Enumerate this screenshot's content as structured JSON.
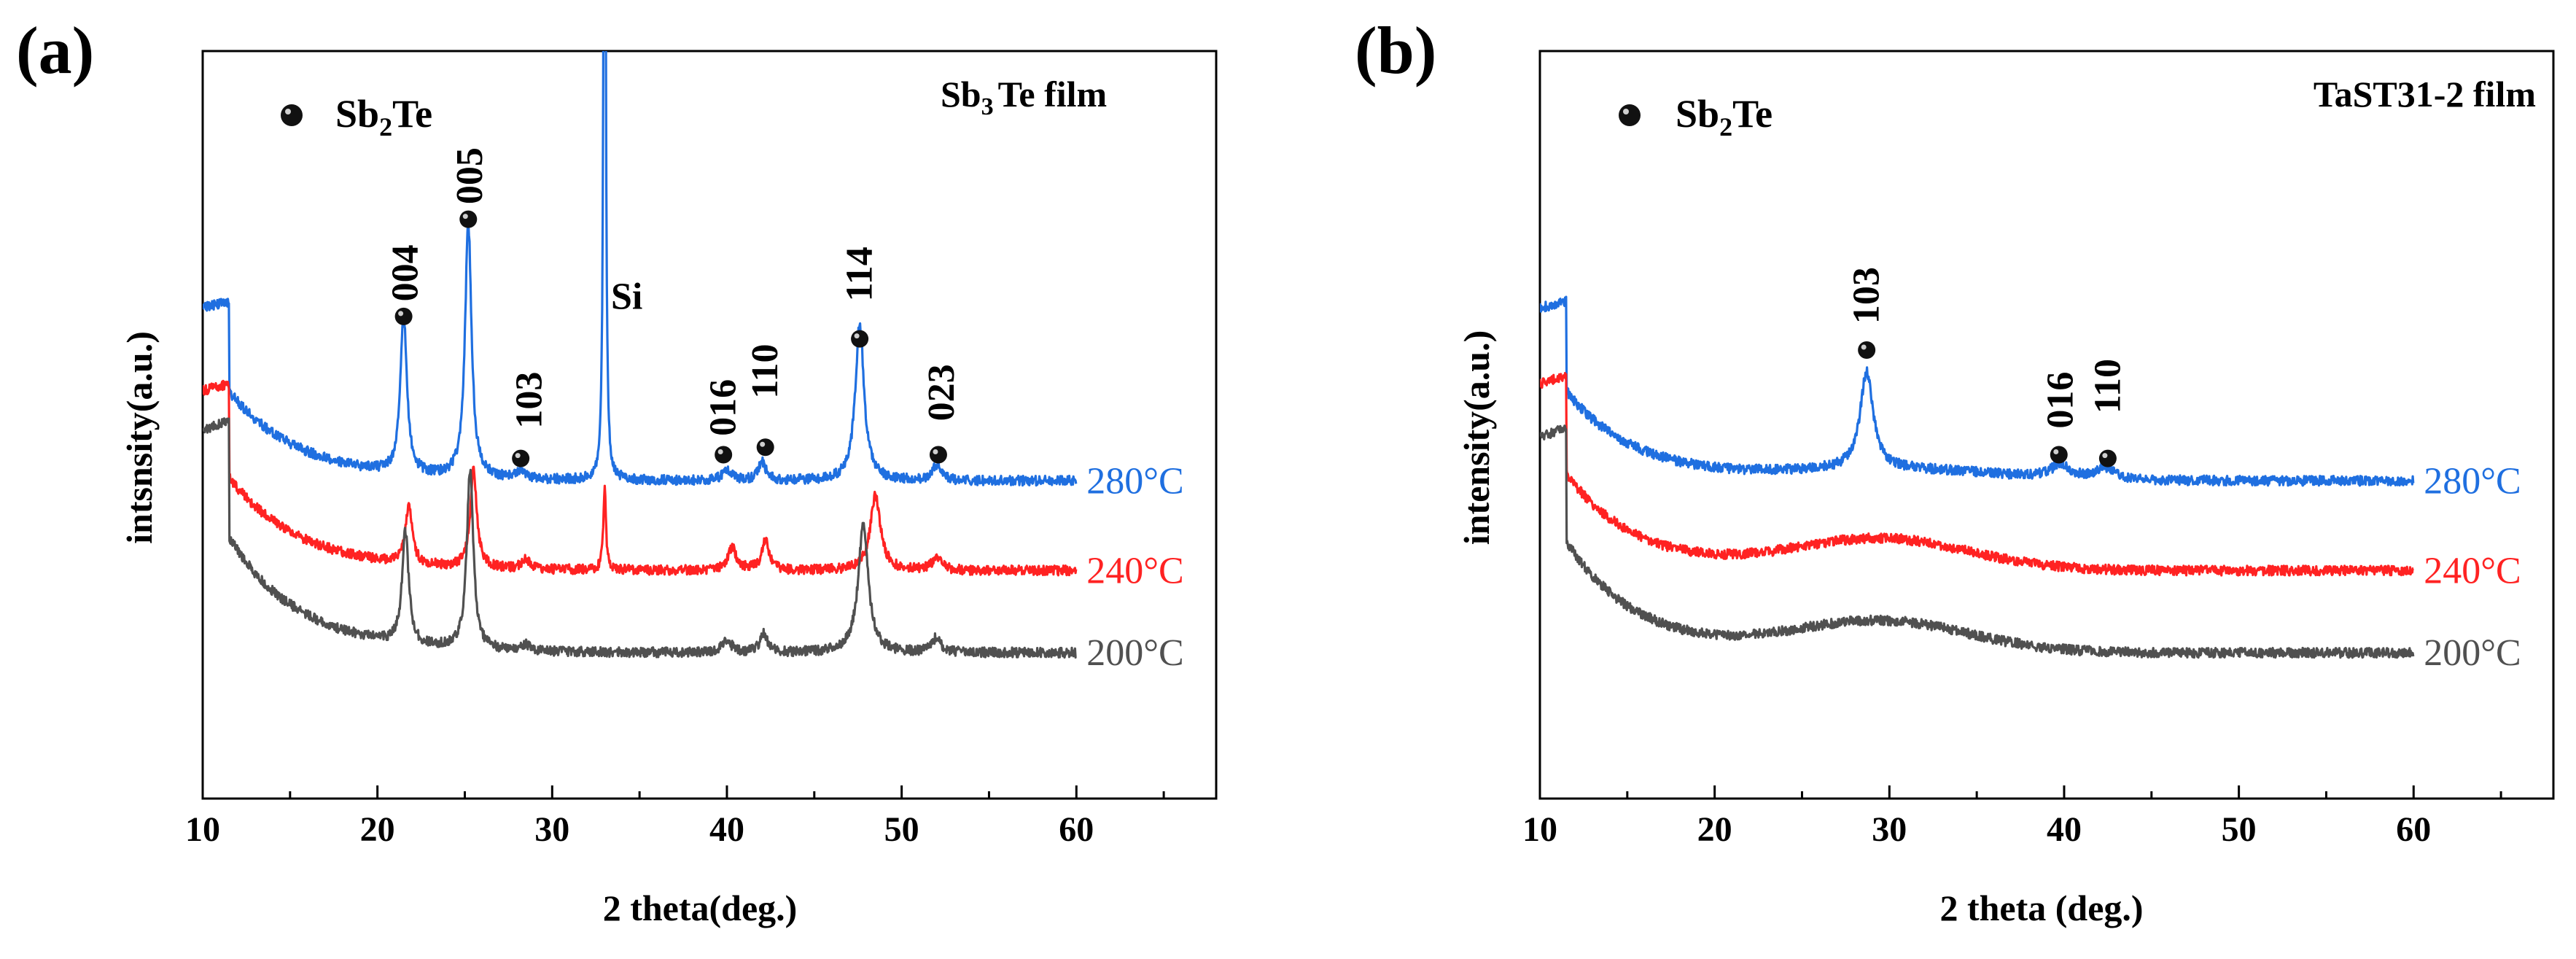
{
  "chart_data": [
    {
      "panel_label": "(a)",
      "type": "line",
      "title": "Sb3Te film",
      "title_parts": {
        "base": "Sb",
        "sub": "3",
        "rest": "Te film"
      },
      "legend": {
        "label_base": "Sb",
        "label_sub": "2",
        "label_rest": "Te",
        "placement": "top-left",
        "marker": "black sphere"
      },
      "xlabel": "2 theta(deg.)",
      "ylabel": "intsnsity(a.u.)",
      "xlim": [
        10,
        68
      ],
      "ylim": [
        0,
        100
      ],
      "x_ticks": [
        10,
        20,
        30,
        40,
        50,
        60
      ],
      "x_tick_labels": [
        "10",
        "20",
        "30",
        "40",
        "50",
        "60"
      ],
      "series": [
        {
          "name": "280°C",
          "color": "#1f6fe0",
          "baseline": 57.5,
          "hump": {
            "amplitude": 12,
            "center": 11.5,
            "width": 4
          },
          "peaks": [
            {
              "x": 21.5,
              "height": 21,
              "fwhm": 0.45
            },
            {
              "x": 25.2,
              "height": 34,
              "fwhm": 0.45
            },
            {
              "x": 28.2,
              "height": 1.2,
              "fwhm": 0.6
            },
            {
              "x": 33.0,
              "height": 150,
              "fwhm": 0.12
            },
            {
              "x": 40.0,
              "height": 1.5,
              "fwhm": 0.6
            },
            {
              "x": 42.0,
              "height": 2.6,
              "fwhm": 0.5
            },
            {
              "x": 47.6,
              "height": 21,
              "fwhm": 0.6
            },
            {
              "x": 52.0,
              "height": 2.0,
              "fwhm": 0.6
            }
          ]
        },
        {
          "name": "240°C",
          "color": "#ff2222",
          "baseline": 69.5,
          "hump": {
            "amplitude": 12.5,
            "center": 11.5,
            "width": 4
          },
          "peaks": [
            {
              "x": 21.8,
              "height": 8,
              "fwhm": 0.45
            },
            {
              "x": 25.5,
              "height": 13,
              "fwhm": 0.45
            },
            {
              "x": 28.5,
              "height": 1.3,
              "fwhm": 0.6
            },
            {
              "x": 33.0,
              "height": 11,
              "fwhm": 0.18
            },
            {
              "x": 40.3,
              "height": 3,
              "fwhm": 0.6
            },
            {
              "x": 42.2,
              "height": 4,
              "fwhm": 0.5
            },
            {
              "x": 48.5,
              "height": 10,
              "fwhm": 0.7
            },
            {
              "x": 52.0,
              "height": 1.8,
              "fwhm": 0.6
            }
          ]
        },
        {
          "name": "200°C",
          "color": "#505050",
          "baseline": 80.5,
          "hump": {
            "amplitude": 15.5,
            "center": 11.5,
            "width": 4
          },
          "peaks": [
            {
              "x": 21.6,
              "height": 15,
              "fwhm": 0.45
            },
            {
              "x": 25.3,
              "height": 24,
              "fwhm": 0.45
            },
            {
              "x": 28.5,
              "height": 0.8,
              "fwhm": 0.6
            },
            {
              "x": 40.0,
              "height": 1.7,
              "fwhm": 0.6
            },
            {
              "x": 42.1,
              "height": 2.6,
              "fwhm": 0.5
            },
            {
              "x": 47.8,
              "height": 17,
              "fwhm": 0.7
            },
            {
              "x": 52.0,
              "height": 2.0,
              "fwhm": 0.6
            }
          ]
        }
      ],
      "peak_markers": [
        {
          "x": 21.5,
          "y": 35.5
        },
        {
          "x": 25.2,
          "y": 22.5
        },
        {
          "x": 28.2,
          "y": 54.5
        },
        {
          "x": 39.8,
          "y": 54.0
        },
        {
          "x": 42.2,
          "y": 53.0
        },
        {
          "x": 47.6,
          "y": 38.5
        },
        {
          "x": 52.1,
          "y": 54.0
        }
      ],
      "peak_labels": [
        {
          "text": "004",
          "x": 21.6,
          "y": 33.5,
          "rotate": true
        },
        {
          "text": "005",
          "x": 25.3,
          "y": 20.5,
          "rotate": true
        },
        {
          "text": "103",
          "x": 28.7,
          "y": 50.5,
          "rotate": true
        },
        {
          "text": "Si",
          "x": 33.7,
          "y": 34.5,
          "rotate": false
        },
        {
          "text": "016",
          "x": 39.8,
          "y": 51.5,
          "rotate": true
        },
        {
          "text": "110",
          "x": 42.2,
          "y": 46.5,
          "rotate": true
        },
        {
          "text": "114",
          "x": 47.6,
          "y": 33.5,
          "rotate": true
        },
        {
          "text": "023",
          "x": 52.3,
          "y": 49.5,
          "rotate": true
        }
      ]
    },
    {
      "panel_label": "(b)",
      "type": "line",
      "title": "TaST31-2 film",
      "legend": {
        "label_base": "Sb",
        "label_sub": "2",
        "label_rest": "Te",
        "placement": "top-left",
        "marker": "black sphere"
      },
      "xlabel": "2 theta (deg.)",
      "ylabel": "intensity(a.u.)",
      "xlim": [
        10,
        68
      ],
      "ylim": [
        0,
        100
      ],
      "x_ticks": [
        10,
        20,
        30,
        40,
        50,
        60
      ],
      "x_tick_labels": [
        "10",
        "20",
        "30",
        "40",
        "50",
        "60"
      ],
      "series": [
        {
          "name": "280°C",
          "color": "#1f6fe0",
          "baseline": 57.5,
          "hump": {
            "amplitude": 12,
            "center": 11.5,
            "width": 4
          },
          "broad": {
            "amplitude": 1.5,
            "center": 30,
            "width": 6
          },
          "peaks": [
            {
              "x": 28.7,
              "height": 13,
              "fwhm": 0.9
            },
            {
              "x": 39.8,
              "height": 1.8,
              "fwhm": 1.3
            },
            {
              "x": 42.3,
              "height": 1.6,
              "fwhm": 1.2
            }
          ]
        },
        {
          "name": "240°C",
          "color": "#ff2222",
          "baseline": 69.5,
          "hump": {
            "amplitude": 13,
            "center": 11.5,
            "width": 4
          },
          "broad": {
            "amplitude": 4.2,
            "center": 29.5,
            "width": 5
          },
          "peaks": []
        },
        {
          "name": "200°C",
          "color": "#505050",
          "baseline": 80.5,
          "hump": {
            "amplitude": 15,
            "center": 11.5,
            "width": 4
          },
          "broad": {
            "amplitude": 4.2,
            "center": 29.5,
            "width": 5
          },
          "peaks": []
        }
      ],
      "peak_markers": [
        {
          "x": 28.7,
          "y": 40.0
        },
        {
          "x": 39.7,
          "y": 54.0
        },
        {
          "x": 42.5,
          "y": 54.5
        }
      ],
      "peak_labels": [
        {
          "text": "103",
          "x": 28.7,
          "y": 36.5,
          "rotate": true
        },
        {
          "text": "016",
          "x": 39.8,
          "y": 50.5,
          "rotate": true
        },
        {
          "text": "110",
          "x": 42.5,
          "y": 48.5,
          "rotate": true
        }
      ]
    }
  ]
}
